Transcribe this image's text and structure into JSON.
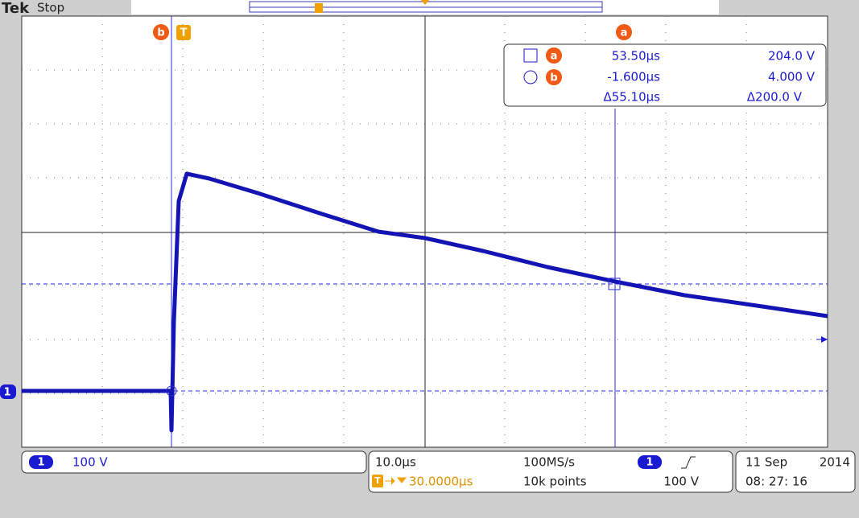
{
  "header": {
    "brand": "Tek",
    "status": "Stop"
  },
  "markers": {
    "cursor_a": "a",
    "cursor_b": "b",
    "trigger": "T",
    "channel": "1"
  },
  "readout": {
    "a_time": "53.50µs",
    "a_volt": "204.0 V",
    "b_time": "-1.600µs",
    "b_volt": "4.000 V",
    "delta_time": "Δ55.10µs",
    "delta_volt": "Δ200.0 V"
  },
  "footer": {
    "ch1_scale": "100 V",
    "timebase": "10.0µs",
    "sample_rate": "100MS/s",
    "trigger_pos": "30.0000µs",
    "record_length": "10k points",
    "trigger_level": "100 V",
    "date": "11 Sep",
    "year": "2014",
    "time": "08: 27: 16"
  }
}
